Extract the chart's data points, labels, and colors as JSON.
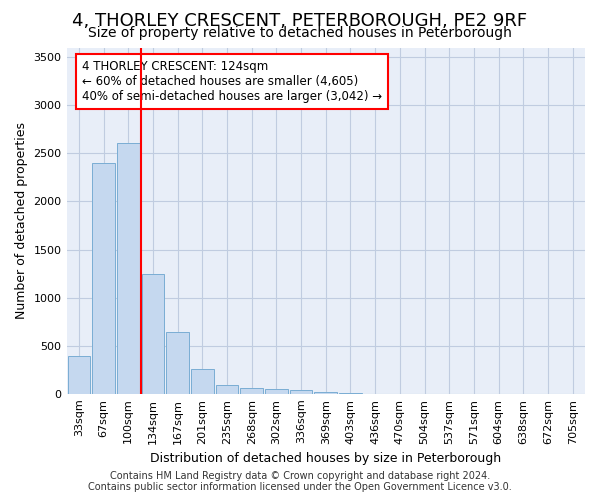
{
  "title": "4, THORLEY CRESCENT, PETERBOROUGH, PE2 9RF",
  "subtitle": "Size of property relative to detached houses in Peterborough",
  "xlabel": "Distribution of detached houses by size in Peterborough",
  "ylabel": "Number of detached properties",
  "bar_labels": [
    "33sqm",
    "67sqm",
    "100sqm",
    "134sqm",
    "167sqm",
    "201sqm",
    "235sqm",
    "268sqm",
    "302sqm",
    "336sqm",
    "369sqm",
    "403sqm",
    "436sqm",
    "470sqm",
    "504sqm",
    "537sqm",
    "571sqm",
    "604sqm",
    "638sqm",
    "672sqm",
    "705sqm"
  ],
  "bar_values": [
    390,
    2400,
    2610,
    1250,
    640,
    260,
    95,
    60,
    55,
    40,
    15,
    10,
    0,
    0,
    0,
    0,
    0,
    0,
    0,
    0,
    0
  ],
  "bar_color": "#c5d8ef",
  "bar_edge_color": "#7aadd4",
  "ylim": [
    0,
    3600
  ],
  "yticks": [
    0,
    500,
    1000,
    1500,
    2000,
    2500,
    3000,
    3500
  ],
  "red_line_x": 2.5,
  "annotation_title": "4 THORLEY CRESCENT: 124sqm",
  "annotation_line1": "← 60% of detached houses are smaller (4,605)",
  "annotation_line2": "40% of semi-detached houses are larger (3,042) →",
  "footer_line1": "Contains HM Land Registry data © Crown copyright and database right 2024.",
  "footer_line2": "Contains public sector information licensed under the Open Government Licence v3.0.",
  "bg_color": "#e8eef8",
  "grid_color": "#c0cce0",
  "title_fontsize": 13,
  "subtitle_fontsize": 10,
  "ylabel_fontsize": 9,
  "xlabel_fontsize": 9,
  "tick_fontsize": 8,
  "footer_fontsize": 7,
  "ann_fontsize": 8.5
}
